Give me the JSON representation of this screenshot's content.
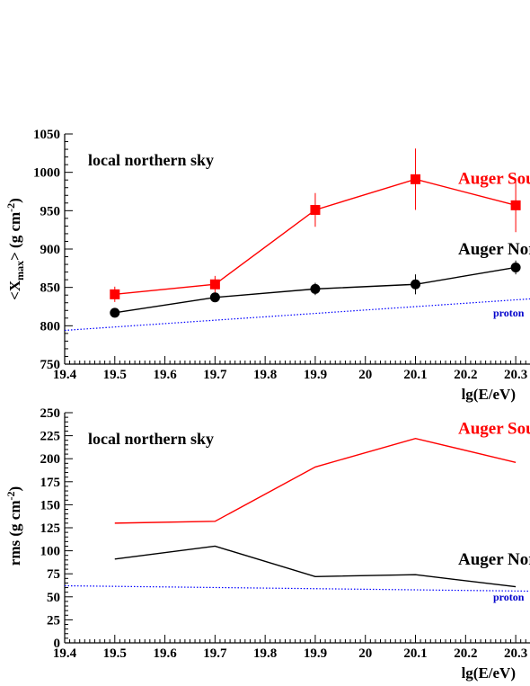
{
  "chart_data": [
    {
      "type": "line",
      "panel_title": "local northern sky",
      "xlabel": "lg(E/eV)",
      "ylabel_parts": [
        "<X",
        "max",
        "> (g cm",
        "-2",
        ")"
      ],
      "xlim": [
        19.4,
        20.35
      ],
      "ylim": [
        750,
        1050
      ],
      "x_ticks": [
        "19.4",
        "19.5",
        "19.6",
        "19.7",
        "19.8",
        "19.9",
        "20",
        "20.1",
        "20.2",
        "20.3"
      ],
      "y_ticks": [
        "750",
        "800",
        "850",
        "900",
        "950",
        "1000",
        "1050"
      ],
      "series": [
        {
          "name": "Auger South",
          "color": "#ff0000",
          "marker": "square",
          "x": [
            19.5,
            19.7,
            19.9,
            20.1,
            20.3
          ],
          "y": [
            841,
            854,
            951,
            991,
            957
          ],
          "err": [
            10,
            11,
            22,
            40,
            35
          ],
          "label_y": 985
        },
        {
          "name": "Auger North",
          "color": "#000000",
          "marker": "circle",
          "x": [
            19.5,
            19.7,
            19.9,
            20.1,
            20.3
          ],
          "y": [
            817,
            837,
            848,
            854,
            876
          ],
          "err": [
            4,
            6,
            8,
            13,
            9
          ],
          "label_y": 893
        },
        {
          "name": "proton",
          "color": "#0000ff",
          "style": "dotted",
          "x": [
            19.4,
            20.35
          ],
          "y": [
            794,
            836
          ],
          "label_y": 812
        }
      ]
    },
    {
      "type": "line",
      "panel_title": "local northern sky",
      "xlabel": "lg(E/eV)",
      "ylabel_parts": [
        "rms (g cm",
        "-2",
        ")"
      ],
      "xlim": [
        19.4,
        20.35
      ],
      "ylim": [
        0,
        250
      ],
      "x_ticks": [
        "19.4",
        "19.5",
        "19.6",
        "19.7",
        "19.8",
        "19.9",
        "20",
        "20.1",
        "20.2",
        "20.3"
      ],
      "y_ticks": [
        "0",
        "25",
        "50",
        "75",
        "100",
        "125",
        "150",
        "175",
        "200",
        "225",
        "250"
      ],
      "series": [
        {
          "name": "Auger South",
          "color": "#ff0000",
          "x": [
            19.5,
            19.7,
            19.9,
            20.1,
            20.3
          ],
          "y": [
            130,
            132,
            191,
            222,
            196
          ],
          "label_y": 227
        },
        {
          "name": "Auger North",
          "color": "#000000",
          "x": [
            19.5,
            19.7,
            19.9,
            20.1,
            20.3
          ],
          "y": [
            91,
            105,
            72,
            74,
            61
          ],
          "label_y": 85
        },
        {
          "name": "proton",
          "color": "#0000ff",
          "style": "dotted",
          "x": [
            19.4,
            20.35
          ],
          "y": [
            62,
            56
          ],
          "label_y": 46
        }
      ]
    }
  ]
}
